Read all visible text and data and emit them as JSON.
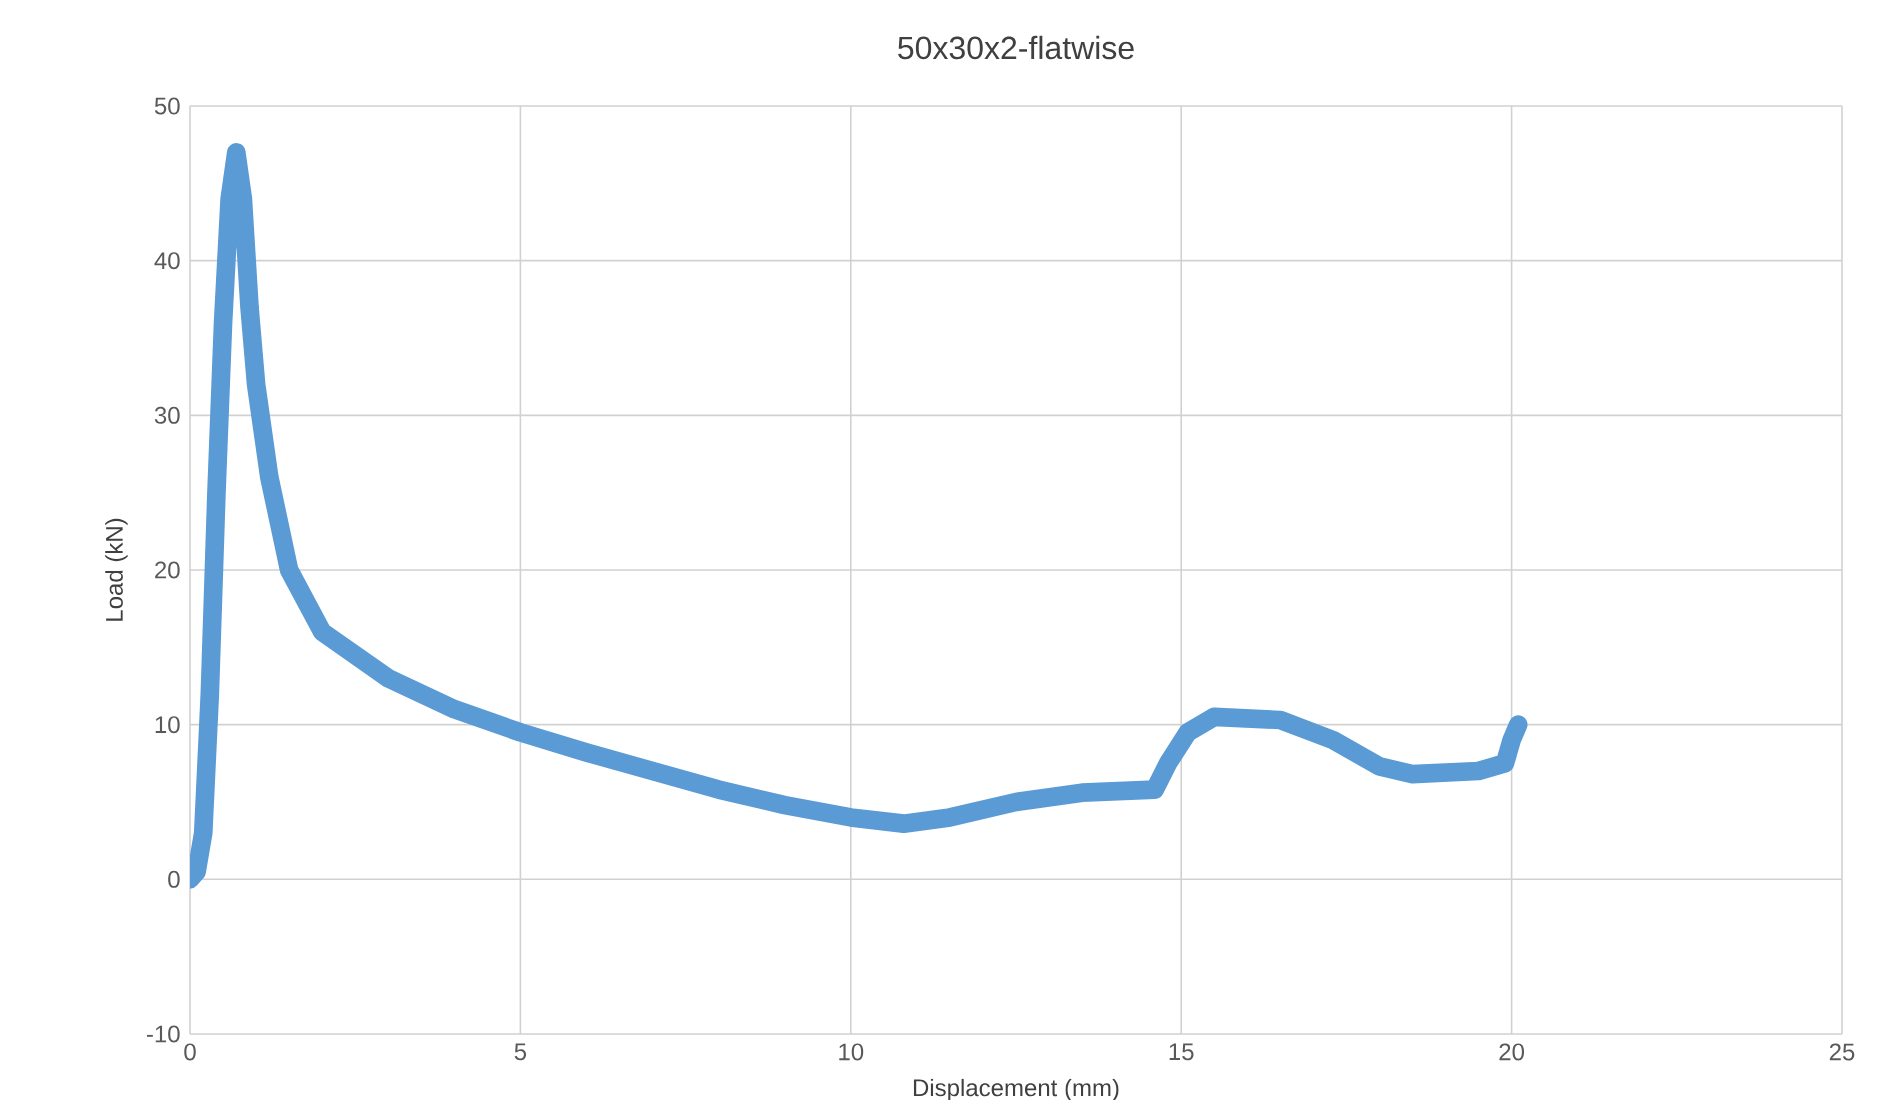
{
  "chart_data": {
    "type": "line",
    "title": "50x30x2-flatwise",
    "xlabel": "Displacement  (mm)",
    "ylabel": "Load (kN)",
    "xlim": [
      0,
      25
    ],
    "xticks": [
      0,
      5,
      10,
      15,
      20,
      25
    ],
    "ylim": [
      -10,
      50
    ],
    "yticks": [
      -10,
      0,
      10,
      20,
      30,
      40,
      50
    ],
    "grid": true,
    "marker": "none",
    "line_style": "solid",
    "series": [
      {
        "color": "#5b9bd5",
        "x": [
          0,
          0.1,
          0.2,
          0.3,
          0.4,
          0.5,
          0.6,
          0.7,
          0.8,
          0.9,
          1.0,
          1.2,
          1.5,
          2,
          2.5,
          3,
          4,
          5,
          6,
          7,
          8,
          9,
          10,
          10.8,
          11.5,
          12.5,
          13.5,
          14.6,
          14.8,
          15.1,
          15.5,
          16.5,
          17.3,
          18,
          18.5,
          19.5,
          19.9,
          20,
          20.1
        ],
        "values": [
          0,
          0.5,
          3,
          12,
          25,
          36,
          44,
          47,
          44,
          37,
          32,
          26,
          20,
          16,
          14.5,
          13,
          11,
          9.5,
          8.2,
          7,
          5.8,
          4.8,
          4,
          3.6,
          4,
          5,
          5.6,
          5.8,
          7.5,
          9.5,
          10.5,
          10.3,
          9,
          7.3,
          6.8,
          7,
          7.5,
          9,
          10
        ]
      }
    ]
  }
}
